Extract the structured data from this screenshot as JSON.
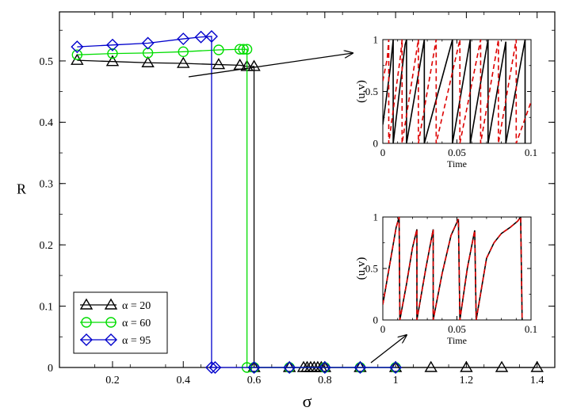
{
  "chart_data": [
    {
      "type": "line",
      "xlabel": "σ",
      "ylabel": "R",
      "xlim": [
        0.05,
        1.45
      ],
      "ylim": [
        0,
        0.58
      ],
      "xticks": [
        0.2,
        0.4,
        0.6,
        0.8,
        1.0,
        1.2,
        1.4
      ],
      "xtick_labels": [
        "0.2",
        "0.4",
        "0.6",
        "0.8",
        "1",
        "1.2",
        "1.4"
      ],
      "yticks": [
        0,
        0.1,
        0.2,
        0.3,
        0.4,
        0.5
      ],
      "ytick_labels": [
        "0",
        "0.1",
        "0.2",
        "0.3",
        "0.4",
        "0.5"
      ],
      "grid": false,
      "legend": {
        "position": "bottom-left"
      },
      "series": [
        {
          "name": "α = 20",
          "color": "#000000",
          "marker": "triangle",
          "points": [
            [
              0.1,
              0.501
            ],
            [
              0.2,
              0.499
            ],
            [
              0.3,
              0.497
            ],
            [
              0.4,
              0.496
            ],
            [
              0.5,
              0.494
            ],
            [
              0.56,
              0.493
            ],
            [
              0.58,
              0.491
            ],
            [
              0.6,
              0.491
            ],
            [
              0.6,
              0.0
            ],
            [
              0.7,
              0.0
            ],
            [
              0.74,
              0.0
            ],
            [
              0.75,
              0.0
            ],
            [
              0.76,
              0.0
            ],
            [
              0.77,
              0.0
            ],
            [
              0.78,
              0.0
            ],
            [
              0.79,
              0.0
            ],
            [
              0.8,
              0.0
            ],
            [
              0.9,
              0.0
            ],
            [
              1.0,
              0.0
            ],
            [
              1.1,
              0.0
            ],
            [
              1.2,
              0.0
            ],
            [
              1.3,
              0.0
            ],
            [
              1.4,
              0.0
            ]
          ]
        },
        {
          "name": "α = 60",
          "color": "#00dd00",
          "marker": "circle",
          "points": [
            [
              0.1,
              0.51
            ],
            [
              0.2,
              0.512
            ],
            [
              0.3,
              0.513
            ],
            [
              0.4,
              0.515
            ],
            [
              0.5,
              0.518
            ],
            [
              0.56,
              0.519
            ],
            [
              0.57,
              0.519
            ],
            [
              0.58,
              0.519
            ],
            [
              0.58,
              0.0
            ],
            [
              0.6,
              0.0
            ],
            [
              0.7,
              0.0
            ],
            [
              0.8,
              0.0
            ],
            [
              0.9,
              0.0
            ],
            [
              1.0,
              0.0
            ]
          ]
        },
        {
          "name": "α = 95",
          "color": "#0000cc",
          "marker": "diamond",
          "points": [
            [
              0.1,
              0.523
            ],
            [
              0.2,
              0.526
            ],
            [
              0.3,
              0.529
            ],
            [
              0.4,
              0.536
            ],
            [
              0.45,
              0.539
            ],
            [
              0.48,
              0.54
            ],
            [
              0.48,
              0.0
            ],
            [
              0.49,
              0.0
            ],
            [
              0.6,
              0.0
            ],
            [
              0.7,
              0.0
            ],
            [
              0.8,
              0.0
            ],
            [
              0.9,
              0.0
            ],
            [
              1.0,
              0.0
            ]
          ]
        }
      ]
    },
    {
      "type": "line",
      "xlabel": "Time",
      "ylabel": "(u,v)",
      "xlim": [
        0,
        0.1
      ],
      "ylim": [
        0,
        1
      ],
      "xticks": [
        0,
        0.05,
        0.1
      ],
      "xtick_labels": [
        "0",
        "0.05",
        "0.1"
      ],
      "yticks": [
        0,
        0.5,
        1
      ],
      "ytick_labels": [
        "0",
        "0.5",
        "1"
      ],
      "series": [
        {
          "color": "#000000",
          "dash": "solid",
          "points": [
            [
              0,
              0.18
            ],
            [
              0.005,
              0.72
            ],
            [
              0.007,
              1.0
            ],
            [
              0.007,
              0.0
            ],
            [
              0.015,
              0.95
            ],
            [
              0.016,
              1.0
            ],
            [
              0.016,
              0.0
            ],
            [
              0.028,
              1.0
            ],
            [
              0.028,
              0.0
            ],
            [
              0.047,
              1.0
            ],
            [
              0.047,
              0.0
            ],
            [
              0.059,
              1.0
            ],
            [
              0.059,
              0.0
            ],
            [
              0.071,
              1.0
            ],
            [
              0.071,
              0.0
            ],
            [
              0.083,
              0.98
            ],
            [
              0.083,
              0.0
            ],
            [
              0.096,
              1.0
            ],
            [
              0.096,
              0.0
            ]
          ]
        },
        {
          "color": "#dd0000",
          "dash": "dashed",
          "points": [
            [
              0,
              0.6
            ],
            [
              0.003,
              0.82
            ],
            [
              0.004,
              1.0
            ],
            [
              0.004,
              0.0
            ],
            [
              0.012,
              0.85
            ],
            [
              0.013,
              1.0
            ],
            [
              0.013,
              0.0
            ],
            [
              0.024,
              1.0
            ],
            [
              0.024,
              0.0
            ],
            [
              0.036,
              1.0
            ],
            [
              0.036,
              0.0
            ],
            [
              0.052,
              1.0
            ],
            [
              0.052,
              0.0
            ],
            [
              0.066,
              1.0
            ],
            [
              0.066,
              0.0
            ],
            [
              0.078,
              1.0
            ],
            [
              0.078,
              0.0
            ],
            [
              0.09,
              1.0
            ],
            [
              0.09,
              0.0
            ],
            [
              0.1,
              0.4
            ]
          ]
        }
      ]
    },
    {
      "type": "line",
      "xlabel": "Time",
      "ylabel": "(u,v)",
      "xlim": [
        0,
        0.1
      ],
      "ylim": [
        0,
        1
      ],
      "xticks": [
        0,
        0.05,
        0.1
      ],
      "xtick_labels": [
        "0",
        "0.05",
        "0.1"
      ],
      "yticks": [
        0,
        0.5,
        1
      ],
      "ytick_labels": [
        "0",
        "0.5",
        "1"
      ],
      "series": [
        {
          "color": "#000000",
          "dash": "solid",
          "points": [
            [
              0,
              0.15
            ],
            [
              0.003,
              0.4
            ],
            [
              0.006,
              0.65
            ],
            [
              0.009,
              0.9
            ],
            [
              0.011,
              1.0
            ],
            [
              0.0115,
              0.0
            ],
            [
              0.016,
              0.35
            ],
            [
              0.02,
              0.7
            ],
            [
              0.023,
              0.88
            ],
            [
              0.023,
              0.0
            ],
            [
              0.029,
              0.5
            ],
            [
              0.034,
              0.88
            ],
            [
              0.034,
              0.0
            ],
            [
              0.04,
              0.45
            ],
            [
              0.046,
              0.82
            ],
            [
              0.051,
              0.98
            ],
            [
              0.052,
              0.0
            ],
            [
              0.057,
              0.5
            ],
            [
              0.062,
              0.87
            ],
            [
              0.063,
              0.0
            ],
            [
              0.07,
              0.6
            ],
            [
              0.075,
              0.75
            ],
            [
              0.08,
              0.84
            ],
            [
              0.086,
              0.9
            ],
            [
              0.091,
              0.96
            ],
            [
              0.093,
              1.0
            ],
            [
              0.094,
              0.0
            ]
          ]
        },
        {
          "color": "#dd0000",
          "dash": "dashed",
          "points": [
            [
              0,
              0.15
            ],
            [
              0.003,
              0.4
            ],
            [
              0.006,
              0.65
            ],
            [
              0.009,
              0.9
            ],
            [
              0.011,
              1.0
            ],
            [
              0.0115,
              0.0
            ],
            [
              0.016,
              0.35
            ],
            [
              0.02,
              0.7
            ],
            [
              0.023,
              0.88
            ],
            [
              0.023,
              0.0
            ],
            [
              0.029,
              0.5
            ],
            [
              0.034,
              0.88
            ],
            [
              0.034,
              0.0
            ],
            [
              0.04,
              0.45
            ],
            [
              0.046,
              0.82
            ],
            [
              0.051,
              0.98
            ],
            [
              0.052,
              0.0
            ],
            [
              0.057,
              0.5
            ],
            [
              0.062,
              0.87
            ],
            [
              0.063,
              0.0
            ],
            [
              0.07,
              0.6
            ],
            [
              0.075,
              0.75
            ],
            [
              0.08,
              0.84
            ],
            [
              0.086,
              0.9
            ],
            [
              0.091,
              0.96
            ],
            [
              0.093,
              1.0
            ],
            [
              0.094,
              0.0
            ]
          ]
        }
      ]
    }
  ]
}
